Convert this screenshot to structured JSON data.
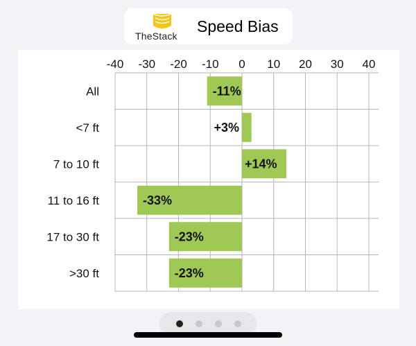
{
  "header": {
    "brand": "TheStack",
    "title": "Speed Bias",
    "logo_icon": "stacked-coins-icon"
  },
  "chart_data": {
    "type": "bar",
    "orientation": "horizontal",
    "title": "Speed Bias",
    "categories": [
      "All",
      "<7 ft",
      "7 to 10 ft",
      "11 to 16 ft",
      "17 to 30 ft",
      ">30 ft"
    ],
    "values": [
      -11,
      3,
      14,
      -33,
      -23,
      -23
    ],
    "value_labels": [
      "-11%",
      "+3%",
      "+14%",
      "-33%",
      "-23%",
      "-23%"
    ],
    "xlim": [
      -40,
      40
    ],
    "xticks": [
      "-40",
      "-30",
      "-20",
      "-10",
      "0",
      "10",
      "20",
      "30",
      "40"
    ],
    "xlabel": "",
    "ylabel": "",
    "grid": true,
    "bar_color": "#a0c855",
    "grid_color": "#b5b5b5"
  },
  "pager": {
    "pages": 4,
    "current": 1,
    "active_color": "#222222",
    "inactive_color": "#c7c7cc"
  }
}
